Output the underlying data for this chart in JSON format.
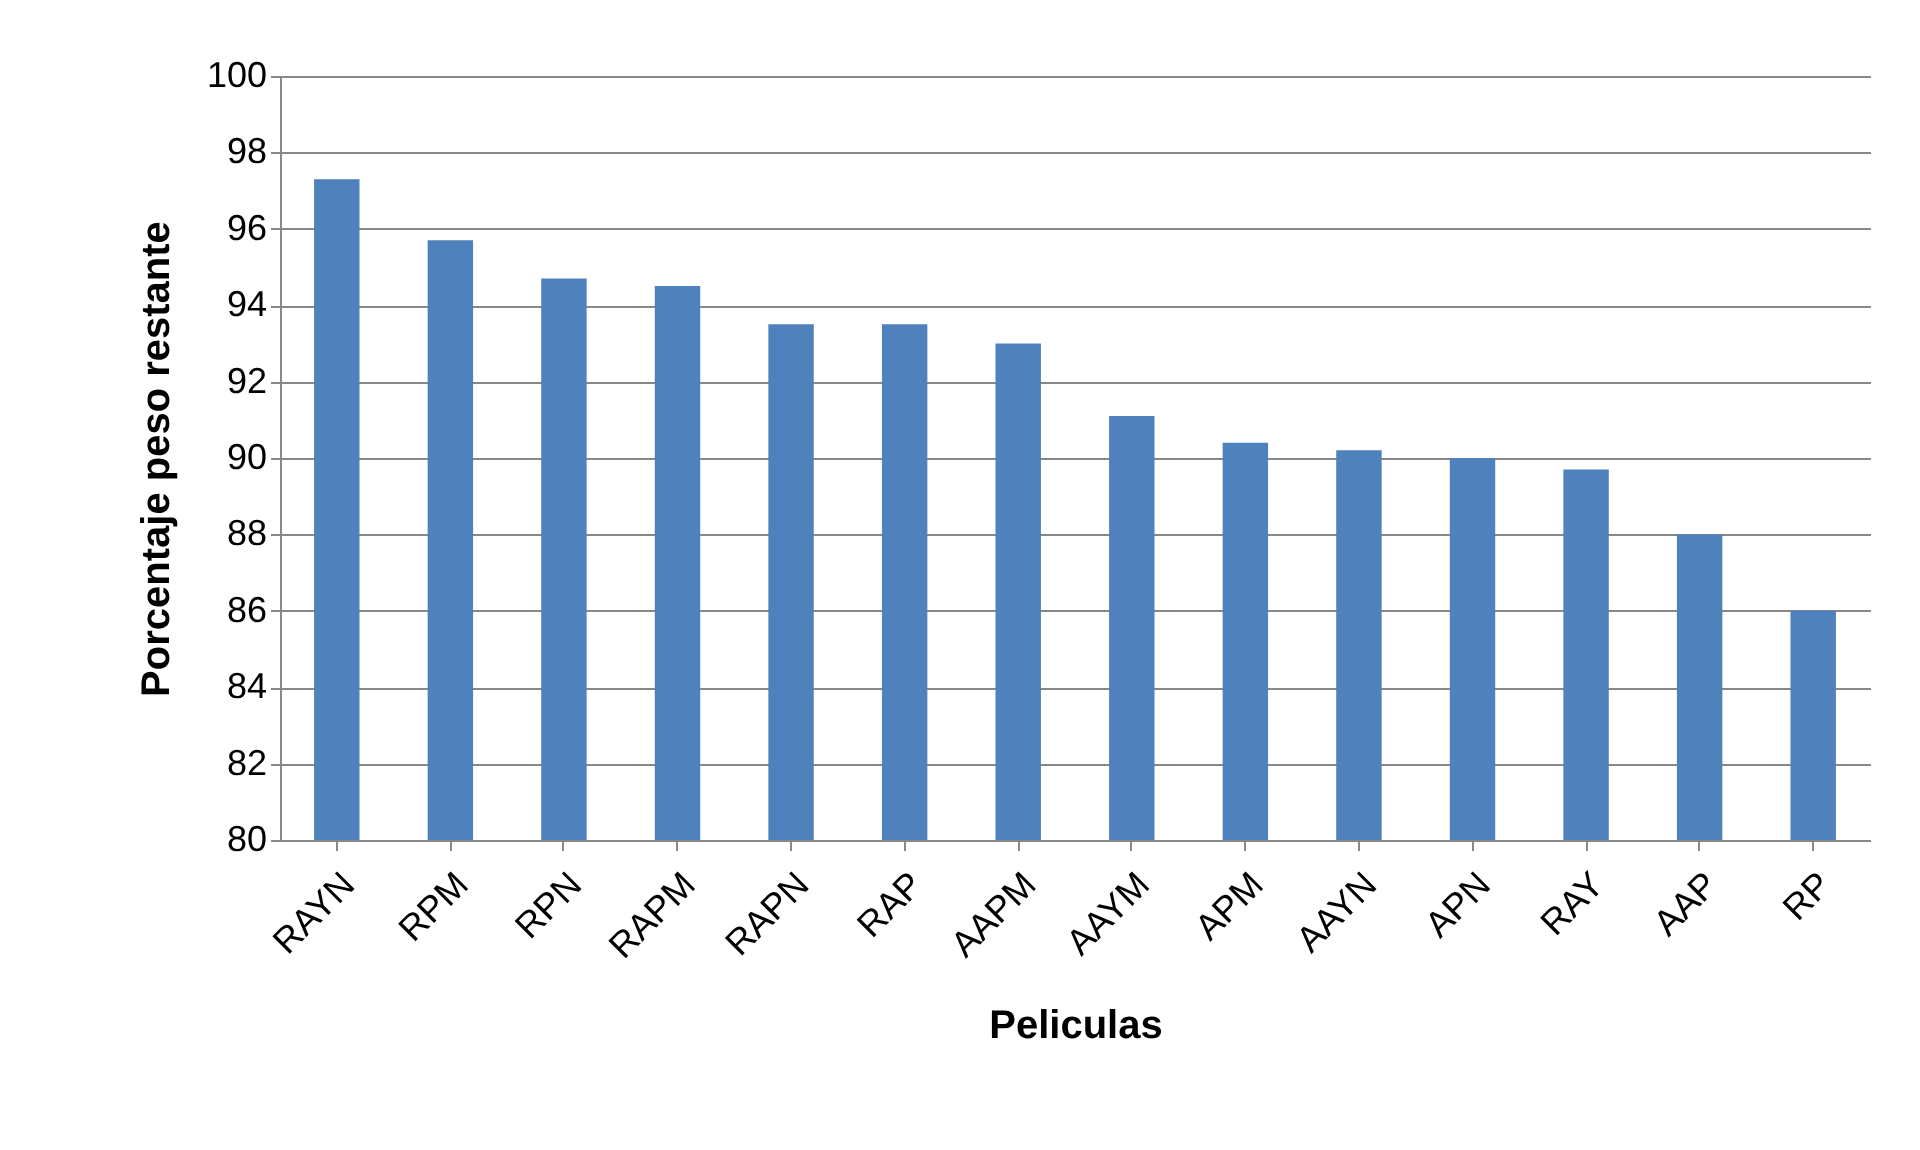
{
  "chart_data": {
    "type": "bar",
    "xlabel": "Peliculas",
    "ylabel": "Porcentaje  peso restante",
    "categories": [
      "RAYN",
      "RPM",
      "RPN",
      "RAPM",
      "RAPN",
      "RAP",
      "AAPM",
      "AAYM",
      "APM",
      "AAYN",
      "APN",
      "RAY",
      "AAP",
      "RP"
    ],
    "values": [
      97.3,
      95.7,
      94.7,
      94.5,
      93.5,
      93.5,
      93.0,
      91.1,
      90.4,
      90.2,
      90.0,
      89.7,
      88.0,
      86.0
    ],
    "color": "#4f81bd",
    "ylim": [
      80,
      100
    ],
    "yticks": [
      80,
      82,
      84,
      86,
      88,
      90,
      92,
      94,
      96,
      98,
      100
    ],
    "grid": "y"
  }
}
